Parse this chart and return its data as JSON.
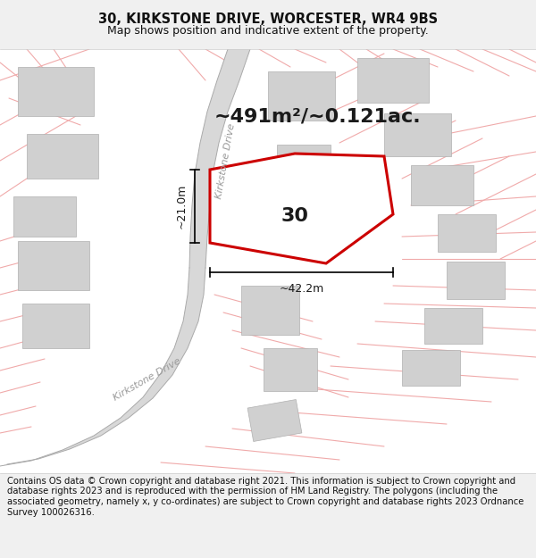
{
  "title_line1": "30, KIRKSTONE DRIVE, WORCESTER, WR4 9BS",
  "title_line2": "Map shows position and indicative extent of the property.",
  "area_text": "~491m²/~0.121ac.",
  "label_30": "30",
  "dim_width": "~42.2m",
  "dim_height": "~21.0m",
  "road_label_upper": "Kirkstone Drive",
  "road_label_lower": "Kirkstone Drive",
  "footer_text": "Contains OS data © Crown copyright and database right 2021. This information is subject to Crown copyright and database rights 2023 and is reproduced with the permission of HM Land Registry. The polygons (including the associated geometry, namely x, y co-ordinates) are subject to Crown copyright and database rights 2023 Ordnance Survey 100026316.",
  "bg_color": "#f0f0f0",
  "map_bg": "#ffffff",
  "road_fill_color": "#d8d8d8",
  "road_edge_color": "#aaaaaa",
  "plot_fill": "#ffffff",
  "plot_stroke": "#cc0000",
  "building_fill": "#d0d0d0",
  "building_edge": "#b0b0b0",
  "road_line_color": "#f0aaaa",
  "dim_line_color": "#000000",
  "title_fontsize": 10.5,
  "subtitle_fontsize": 9,
  "area_fontsize": 16,
  "label_fontsize": 16,
  "dim_fontsize": 9,
  "footer_fontsize": 7.2,
  "road_label_fontsize": 8
}
